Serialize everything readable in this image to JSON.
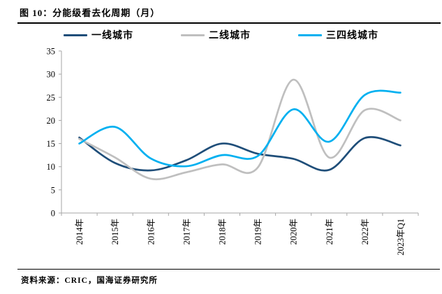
{
  "figure": {
    "title": "图 10：分能级看去化周期（月）",
    "source": "资料来源：CRIC，国海证券研究所"
  },
  "chart_data": {
    "type": "line",
    "title": "分能级看去化周期（月）",
    "categories": [
      "2014年",
      "2015年",
      "2016年",
      "2017年",
      "2018年",
      "2019年",
      "2020年",
      "2021年",
      "2022年",
      "2023年Q1"
    ],
    "series": [
      {
        "name": "一线城市",
        "color": "#1F4E79",
        "values": [
          16.3,
          10.8,
          9.2,
          11.4,
          15.0,
          12.8,
          11.7,
          9.3,
          16.2,
          14.6
        ]
      },
      {
        "name": "二线城市",
        "color": "#BFBFBF",
        "values": [
          16.0,
          12.0,
          7.4,
          8.8,
          10.5,
          9.8,
          28.8,
          12.0,
          22.2,
          20.0
        ]
      },
      {
        "name": "三四线城市",
        "color": "#00B0F0",
        "values": [
          15.0,
          18.6,
          11.8,
          10.1,
          12.5,
          12.3,
          22.4,
          15.4,
          25.5,
          26.0
        ]
      }
    ],
    "ylabel": "",
    "xlabel": "",
    "ylim": [
      0,
      35
    ],
    "ytick_step": 5,
    "legend_position": "top",
    "grid": false,
    "smooth": true,
    "axis_color": "#A6A6A6",
    "tick_label_color": "#000000"
  }
}
